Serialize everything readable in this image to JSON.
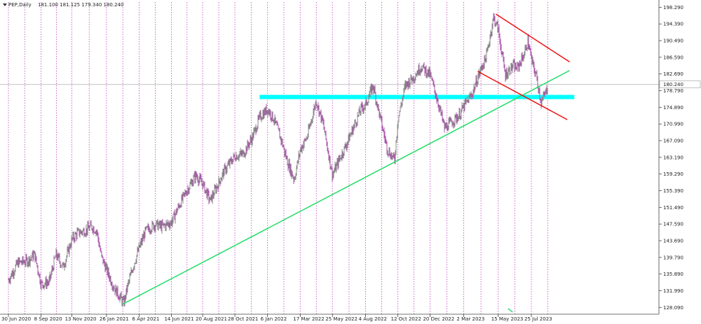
{
  "header": {
    "symbol": "PEP,Daily",
    "ohlc": "181.100 181.125 179.340 180.240"
  },
  "chart_data": {
    "type": "candlestick",
    "title": "PEP,Daily",
    "ohlc_last": {
      "open": 181.1,
      "high": 181.125,
      "low": 179.34,
      "close": 180.24
    },
    "current_price_label": "180.240",
    "y_range": [
      126.5,
      199.5
    ],
    "y_ticks": [
      "198.290",
      "194.390",
      "190.490",
      "186.590",
      "182.690",
      "178.790",
      "174.890",
      "170.990",
      "167.090",
      "163.190",
      "159.290",
      "155.390",
      "151.490",
      "147.590",
      "143.690",
      "139.790",
      "135.890",
      "131.990",
      "128.090"
    ],
    "x_ticks": [
      "30 Jun 2020",
      "8 Sep 2020",
      "13 Nov 2020",
      "26 Jan 2021",
      "6 Apr 2021",
      "14 Jun 2021",
      "20 Aug 2021",
      "28 Oct 2021",
      "6 Jan 2022",
      "17 Mar 2022",
      "25 May 2022",
      "4 Aug 2022",
      "12 Oct 2022",
      "20 Dec 2022",
      "2 Mar 2023",
      "15 May 2023",
      "25 Jul 2023"
    ],
    "price_path": [
      [
        "2020-06-30",
        134.5
      ],
      [
        "2020-07-20",
        138.5
      ],
      [
        "2020-08-10",
        139.0
      ],
      [
        "2020-08-25",
        140.5
      ],
      [
        "2020-09-08",
        133.5
      ],
      [
        "2020-09-25",
        134.0
      ],
      [
        "2020-10-10",
        140.5
      ],
      [
        "2020-10-25",
        137.5
      ],
      [
        "2020-11-13",
        144.0
      ],
      [
        "2020-11-25",
        145.5
      ],
      [
        "2020-12-10",
        146.0
      ],
      [
        "2020-12-25",
        147.0
      ],
      [
        "2021-01-05",
        146.0
      ],
      [
        "2021-01-15",
        140.0
      ],
      [
        "2021-01-26",
        137.0
      ],
      [
        "2021-02-10",
        133.0
      ],
      [
        "2021-03-04",
        129.0
      ],
      [
        "2021-03-12",
        133.0
      ],
      [
        "2021-03-25",
        138.0
      ],
      [
        "2021-04-06",
        142.0
      ],
      [
        "2021-04-20",
        146.0
      ],
      [
        "2021-05-10",
        147.5
      ],
      [
        "2021-05-25",
        147.0
      ],
      [
        "2021-06-14",
        148.0
      ],
      [
        "2021-07-01",
        152.0
      ],
      [
        "2021-07-15",
        155.0
      ],
      [
        "2021-08-05",
        159.0
      ],
      [
        "2021-08-20",
        157.0
      ],
      [
        "2021-09-05",
        153.0
      ],
      [
        "2021-09-20",
        156.5
      ],
      [
        "2021-10-05",
        160.0
      ],
      [
        "2021-10-28",
        163.5
      ],
      [
        "2021-11-15",
        164.0
      ],
      [
        "2021-12-05",
        168.0
      ],
      [
        "2021-12-20",
        172.5
      ],
      [
        "2022-01-06",
        174.5
      ],
      [
        "2022-01-20",
        172.0
      ],
      [
        "2022-02-05",
        167.0
      ],
      [
        "2022-02-18",
        162.0
      ],
      [
        "2022-03-04",
        158.0
      ],
      [
        "2022-03-17",
        165.0
      ],
      [
        "2022-04-01",
        168.0
      ],
      [
        "2022-04-20",
        176.5
      ],
      [
        "2022-05-05",
        171.0
      ],
      [
        "2022-05-25",
        159.0
      ],
      [
        "2022-06-10",
        163.0
      ],
      [
        "2022-06-25",
        166.5
      ],
      [
        "2022-07-10",
        170.5
      ],
      [
        "2022-07-25",
        174.5
      ],
      [
        "2022-08-04",
        175.5
      ],
      [
        "2022-08-20",
        180.0
      ],
      [
        "2022-09-05",
        172.0
      ],
      [
        "2022-09-20",
        165.0
      ],
      [
        "2022-10-05",
        162.5
      ],
      [
        "2022-10-12",
        172.0
      ],
      [
        "2022-10-28",
        180.0
      ],
      [
        "2022-11-15",
        182.0
      ],
      [
        "2022-12-01",
        184.5
      ],
      [
        "2022-12-20",
        182.5
      ],
      [
        "2023-01-05",
        176.5
      ],
      [
        "2023-01-20",
        170.0
      ],
      [
        "2023-02-05",
        171.5
      ],
      [
        "2023-02-20",
        173.0
      ],
      [
        "2023-03-02",
        175.0
      ],
      [
        "2023-03-20",
        178.0
      ],
      [
        "2023-04-05",
        183.0
      ],
      [
        "2023-04-20",
        187.0
      ],
      [
        "2023-05-05",
        196.0
      ],
      [
        "2023-05-15",
        193.0
      ],
      [
        "2023-05-30",
        182.5
      ],
      [
        "2023-06-15",
        184.5
      ],
      [
        "2023-06-25",
        184.0
      ],
      [
        "2023-07-10",
        187.5
      ],
      [
        "2023-07-18",
        190.5
      ],
      [
        "2023-07-25",
        186.0
      ],
      [
        "2023-08-05",
        182.0
      ],
      [
        "2023-08-15",
        176.0
      ],
      [
        "2023-08-25",
        178.5
      ],
      [
        "2023-08-30",
        180.24
      ]
    ],
    "trendlines": [
      {
        "color": "#22dd66",
        "from": [
          "2021-03-01",
          128.8
        ],
        "to": [
          "2023-10-15",
          183.5
        ]
      },
      {
        "color": "#ee1111",
        "from": [
          "2023-05-10",
          196.7
        ],
        "to": [
          "2023-10-15",
          185.5
        ]
      },
      {
        "color": "#ee1111",
        "from": [
          "2023-04-01",
          183.3
        ],
        "to": [
          "2023-10-10",
          172.0
        ]
      },
      {
        "color": "#22dd66",
        "from": [
          "2023-06-05",
          127.8
        ],
        "to": [
          "2023-06-15",
          127.0
        ]
      }
    ],
    "zones": [
      {
        "color": "#00ffff",
        "from": [
          "2021-12-20",
          177.8
        ],
        "to": [
          "2023-10-25",
          176.8
        ]
      }
    ],
    "grid": "vertical-dotted"
  }
}
